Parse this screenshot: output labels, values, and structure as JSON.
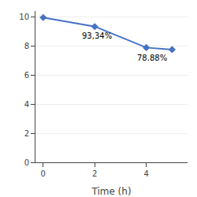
{
  "chart_data": {
    "type": "line",
    "x": [
      0,
      2,
      4,
      5
    ],
    "values": [
      9.95,
      9.334,
      7.888,
      7.75
    ],
    "color": "#4472C4",
    "marker": "diamond",
    "xlabel": "Time (h)",
    "annotations": [
      {
        "x": 2,
        "y": 9.334,
        "text": "93,34%"
      },
      {
        "x": 4,
        "y": 7.888,
        "text": "78.88%"
      }
    ],
    "xlim": [
      -0.3,
      5.6
    ],
    "ylim": [
      0,
      10.4
    ],
    "xticks": [
      0,
      2,
      4
    ],
    "yticks": [
      0,
      2,
      4,
      6,
      8,
      10
    ],
    "grid": "y"
  }
}
